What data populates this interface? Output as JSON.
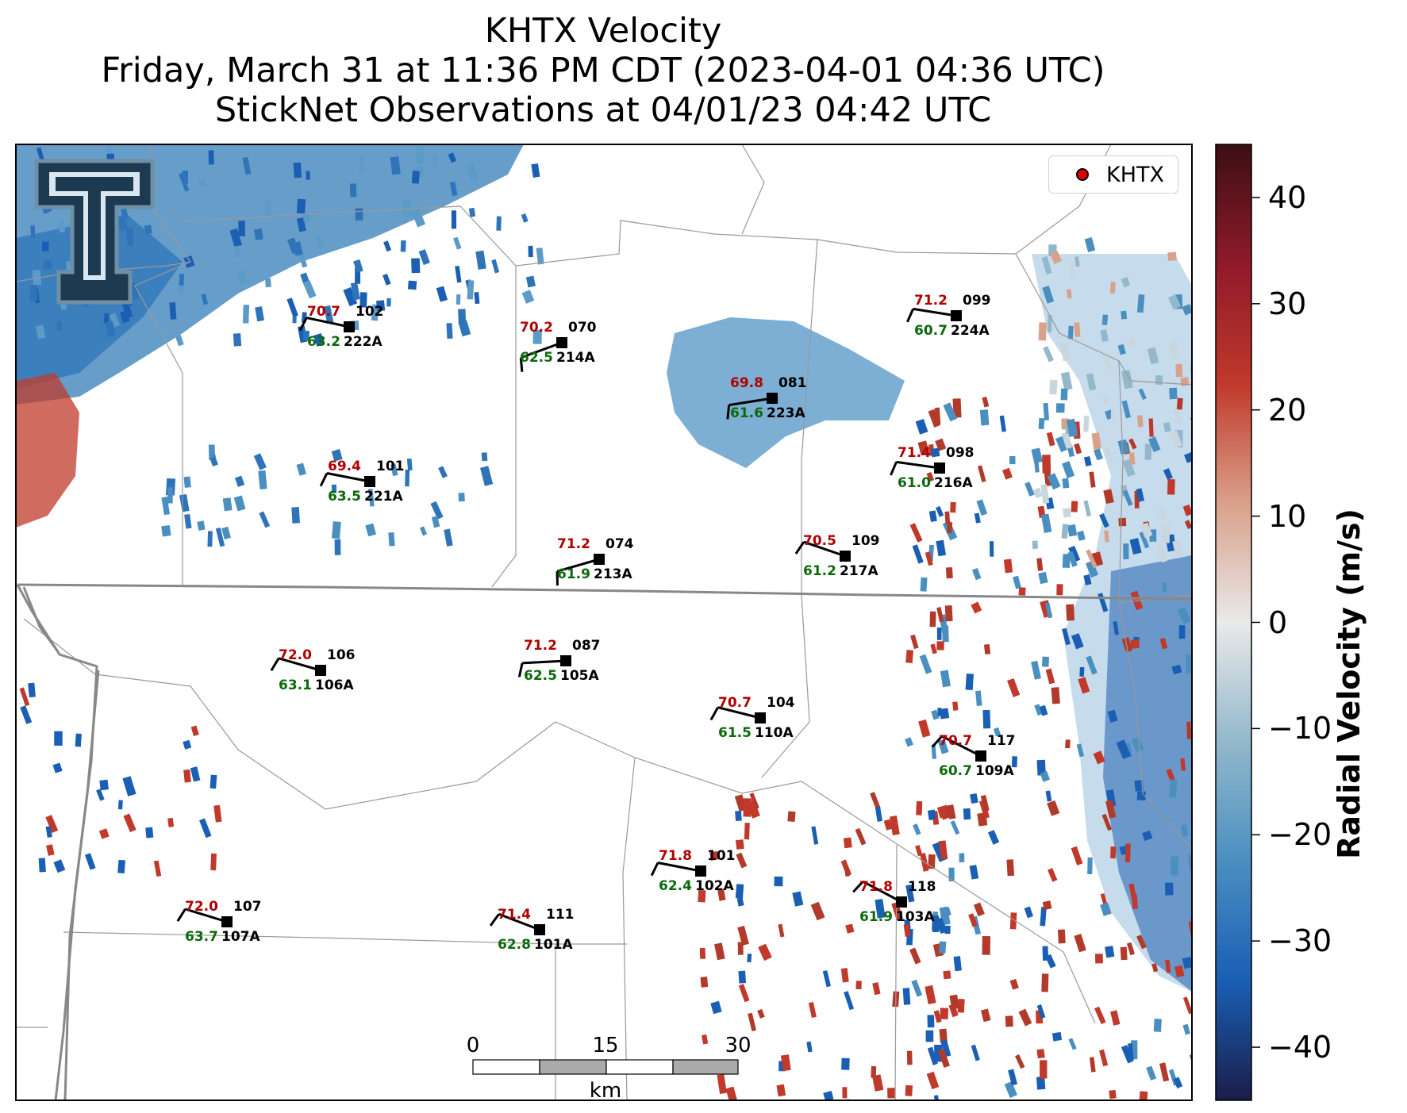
{
  "title": {
    "line1": "KHTX Velocity",
    "line2": "Friday, March 31 at 11:36 PM CDT (2023-04-01 04:36 UTC)",
    "line3": "StickNet Observations at 04/01/23 04:42 UTC"
  },
  "legend": {
    "label": "KHTX",
    "marker_color": "#e00000"
  },
  "colorbar": {
    "label": "Radial Velocity (m/s)",
    "min": -45,
    "max": 45,
    "ticks": [
      "40",
      "30",
      "20",
      "10",
      "0",
      "−10",
      "−20",
      "−30",
      "−40"
    ],
    "tick_values": [
      40,
      30,
      20,
      10,
      0,
      -10,
      -20,
      -30,
      -40
    ],
    "colors": [
      "#3b0f14",
      "#8f1a2a",
      "#c0392b",
      "#d9a08a",
      "#e9e9e9",
      "#93b8cc",
      "#4a8fc0",
      "#1a5fb4",
      "#1b1d4a"
    ]
  },
  "scalebar": {
    "ticks": [
      "0",
      "15",
      "30"
    ],
    "unit": "km"
  },
  "logo": {
    "name": "Texas Tech Double T"
  },
  "stations": [
    {
      "temp": "70.7",
      "dew": "63.2",
      "dir": "102",
      "id": "222A"
    },
    {
      "temp": "70.2",
      "dew": "62.5",
      "dir": "070",
      "id": "214A"
    },
    {
      "temp": "69.8",
      "dew": "61.6",
      "dir": "081",
      "id": "223A"
    },
    {
      "temp": "71.2",
      "dew": "60.7",
      "dir": "099",
      "id": "224A"
    },
    {
      "temp": "69.4",
      "dew": "63.5",
      "dir": "101",
      "id": "221A"
    },
    {
      "temp": "71.4",
      "dew": "61.0",
      "dir": "098",
      "id": "216A"
    },
    {
      "temp": "71.2",
      "dew": "61.9",
      "dir": "074",
      "id": "213A"
    },
    {
      "temp": "70.5",
      "dew": "61.2",
      "dir": "109",
      "id": "217A"
    },
    {
      "temp": "72.0",
      "dew": "63.1",
      "dir": "106",
      "id": "106A"
    },
    {
      "temp": "71.2",
      "dew": "62.5",
      "dir": "087",
      "id": "105A"
    },
    {
      "temp": "70.7",
      "dew": "61.5",
      "dir": "104",
      "id": "110A"
    },
    {
      "temp": "70.7",
      "dew": "60.7",
      "dir": "117",
      "id": "109A"
    },
    {
      "temp": "71.8",
      "dew": "62.4",
      "dir": "101",
      "id": "102A"
    },
    {
      "temp": "71.8",
      "dew": "61.9",
      "dir": "118",
      "id": "103A"
    },
    {
      "temp": "72.0",
      "dew": "63.7",
      "dir": "107",
      "id": "107A"
    },
    {
      "temp": "71.4",
      "dew": "62.8",
      "dir": "111",
      "id": "101A"
    }
  ]
}
